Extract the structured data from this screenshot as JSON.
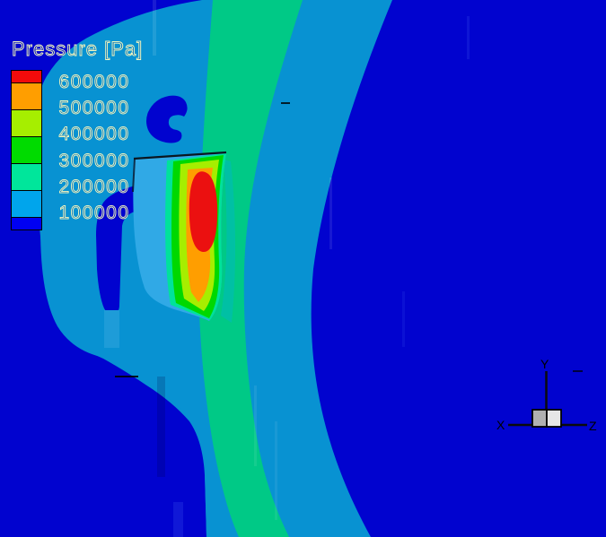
{
  "legend": {
    "title": "Pressure [Pa]",
    "labels": [
      "600000",
      "500000",
      "400000",
      "300000",
      "200000",
      "100000"
    ],
    "band_colors_top_to_bottom": [
      "#F30B0B",
      "#FF9E00",
      "#A6EE00",
      "#00DB00",
      "#00E69B",
      "#00A5EC",
      "#0000F2"
    ]
  },
  "axis_triad": {
    "x_label": "X",
    "y_label": "Y",
    "z_label": "Z"
  },
  "palette": {
    "background_dark_blue": "#0103CF",
    "field_mid_blue": "#0892D2",
    "field_green_band": "#00C986",
    "field_teal_strip": "#00C0A4",
    "bridge_light_blue": "#1E9CD8",
    "blade_light_blue": "#30A9E6",
    "blade_spring_green": "#00E29B",
    "blade_green": "#00D800",
    "blade_chartreuse": "#A6EE00",
    "blade_orange": "#FF9E00",
    "blade_red": "#EB1010",
    "legend_text": "#F5F9BE",
    "triad_cube_left": "#B0B0B0",
    "triad_cube_right": "#E6E6E6"
  }
}
